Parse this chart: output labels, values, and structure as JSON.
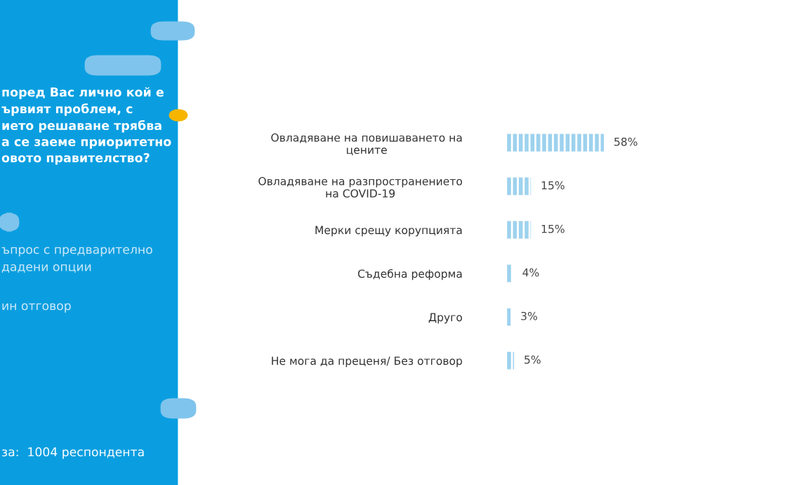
{
  "chart_data": {
    "type": "bar",
    "orientation": "horizontal",
    "title": "поред Вас лично кой е\nървият проблем, с\nието решаване трябва\nа се заеме приоритетно\nовото правителство?",
    "annotations": [
      "ъпрос с предварително\nдадени опции",
      "ин отговор",
      "за:  1004 респондента"
    ],
    "categories": [
      "Овладяване на повишаването на\nцените",
      "Овладяване на разпространението\nна COVID-19",
      "Мерки срещу корупцията",
      "Съдебна реформа",
      "Друго",
      "Не мога да преценя/ Без отговор"
    ],
    "values": [
      58,
      15,
      15,
      4,
      3,
      5
    ],
    "value_labels": [
      "58%",
      "15%",
      "15%",
      "4%",
      "3%",
      "5%"
    ],
    "color": "#9dd2ee"
  }
}
